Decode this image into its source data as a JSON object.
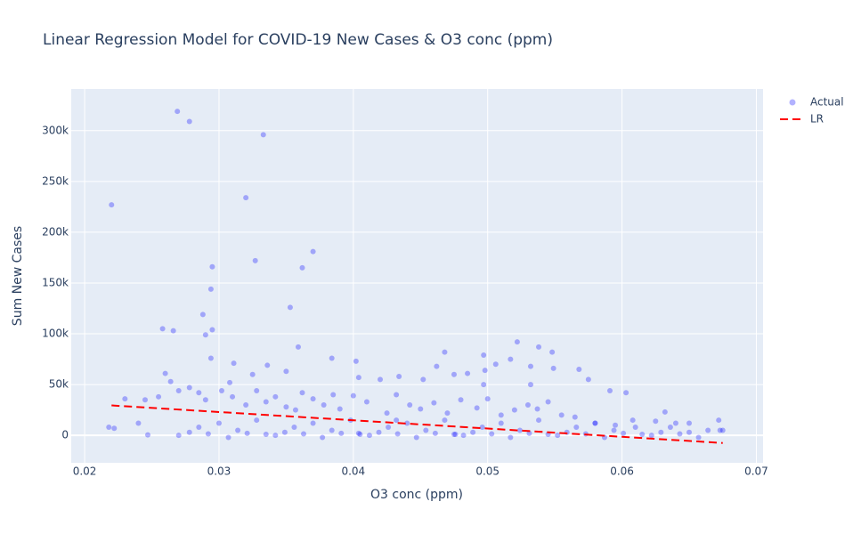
{
  "chart_data": {
    "type": "scatter",
    "title": "Linear Regression Model for COVID-19 New Cases & O3 conc (ppm)",
    "x_label": "O3 conc (ppm)",
    "y_label": "Sum New Cases",
    "xlim": [
      0.019,
      0.0705
    ],
    "ylim": [
      -27000,
      341000
    ],
    "xticks": [
      0.02,
      0.03,
      0.04,
      0.05,
      0.06,
      0.07
    ],
    "yticks": [
      0,
      {
        "value": 50000,
        "label": "50k"
      },
      {
        "value": 100000,
        "label": "100k"
      },
      {
        "value": 150000,
        "label": "150k"
      },
      {
        "value": 200000,
        "label": "200k"
      },
      {
        "value": 250000,
        "label": "250k"
      },
      {
        "value": 300000,
        "label": "300k"
      }
    ],
    "grid": true,
    "legend": "top-right",
    "series": [
      {
        "name": "Actual",
        "mode": "markers",
        "color": "#0000ff",
        "opacity": 0.3,
        "x": [
          0.022,
          0.0269,
          0.0278,
          0.0333,
          0.032,
          0.0327,
          0.037,
          0.0362,
          0.0295,
          0.0294,
          0.0288,
          0.0258,
          0.0266,
          0.0295,
          0.029,
          0.0353,
          0.0359,
          0.0294,
          0.0311,
          0.0336,
          0.0384,
          0.0402,
          0.0468,
          0.0497,
          0.0522,
          0.0538,
          0.0548,
          0.0549,
          0.0532,
          0.0568,
          0.0575,
          0.0591,
          0.0603,
          0.0506,
          0.0498,
          0.0475,
          0.0485,
          0.0462,
          0.0452,
          0.042,
          0.0404,
          0.0434,
          0.026,
          0.0264,
          0.0308,
          0.0325,
          0.035,
          0.0497,
          0.0532,
          0.0517,
          0.023,
          0.0245,
          0.0255,
          0.027,
          0.0278,
          0.0285,
          0.029,
          0.0302,
          0.031,
          0.032,
          0.0328,
          0.0335,
          0.0342,
          0.035,
          0.0357,
          0.0362,
          0.037,
          0.0378,
          0.0385,
          0.039,
          0.04,
          0.041,
          0.0425,
          0.0432,
          0.0442,
          0.045,
          0.046,
          0.047,
          0.048,
          0.0492,
          0.05,
          0.051,
          0.052,
          0.053,
          0.0537,
          0.0545,
          0.0555,
          0.0565,
          0.058,
          0.0595,
          0.061,
          0.0625,
          0.0632,
          0.064,
          0.065,
          0.0672,
          0.0673,
          0.0675,
          0.0218,
          0.0222,
          0.024,
          0.0247,
          0.027,
          0.0278,
          0.0285,
          0.0292,
          0.03,
          0.0307,
          0.0314,
          0.0321,
          0.0328,
          0.0335,
          0.0342,
          0.0349,
          0.0356,
          0.0363,
          0.037,
          0.0377,
          0.0384,
          0.0391,
          0.0398,
          0.0405,
          0.0412,
          0.0419,
          0.0426,
          0.0433,
          0.044,
          0.0447,
          0.0454,
          0.0461,
          0.0468,
          0.0475,
          0.0482,
          0.0489,
          0.0496,
          0.0503,
          0.051,
          0.0517,
          0.0524,
          0.0531,
          0.0538,
          0.0545,
          0.0552,
          0.0559,
          0.0566,
          0.0573,
          0.058,
          0.0587,
          0.0594,
          0.0601,
          0.0608,
          0.0615,
          0.0622,
          0.0629,
          0.0636,
          0.0643,
          0.065,
          0.0657,
          0.0664,
          0.0404,
          0.0432,
          0.0476
        ],
        "values": [
          227000,
          319000,
          309000,
          296000,
          234000,
          172000,
          181000,
          165000,
          166000,
          144000,
          119000,
          105000,
          103000,
          104000,
          99000,
          126000,
          87000,
          76000,
          71000,
          69000,
          76000,
          73000,
          82000,
          79000,
          92000,
          87000,
          82000,
          66000,
          68000,
          65000,
          55000,
          44000,
          42000,
          70000,
          64000,
          60000,
          61000,
          68000,
          55000,
          55000,
          57000,
          58000,
          61000,
          53000,
          52000,
          60000,
          63000,
          50000,
          50000,
          75000,
          36000,
          35000,
          38000,
          44000,
          47000,
          42000,
          35000,
          44000,
          38000,
          30000,
          44000,
          33000,
          38000,
          28000,
          25000,
          42000,
          36000,
          30000,
          40000,
          26000,
          39000,
          33000,
          22000,
          40000,
          30000,
          26000,
          32000,
          22000,
          35000,
          27000,
          36000,
          20000,
          25000,
          30000,
          26000,
          33000,
          20000,
          18000,
          12000,
          10000,
          8000,
          14000,
          23000,
          12000,
          3000,
          15000,
          5000,
          5000,
          8000,
          7000,
          12000,
          500,
          0,
          3000,
          8000,
          1500,
          12000,
          -2000,
          5000,
          2000,
          15000,
          1000,
          0,
          3000,
          8000,
          1500,
          12000,
          -2000,
          5000,
          2000,
          15000,
          1000,
          0,
          3000,
          8000,
          1500,
          12000,
          -2000,
          5000,
          2000,
          15000,
          1000,
          0,
          3000,
          8000,
          1500,
          12000,
          -2000,
          5000,
          2000,
          15000,
          1000,
          0,
          3000,
          8000,
          1500,
          12000,
          -2000,
          5000,
          2000,
          15000,
          1000,
          0,
          3000,
          8000,
          1500,
          12000,
          -2000,
          5000,
          2000,
          15000,
          1000
        ]
      },
      {
        "name": "LR",
        "mode": "lines",
        "color": "#ff0000",
        "dash": true,
        "x": [
          0.022,
          0.0675
        ],
        "values": [
          29500,
          -7500
        ]
      }
    ]
  }
}
